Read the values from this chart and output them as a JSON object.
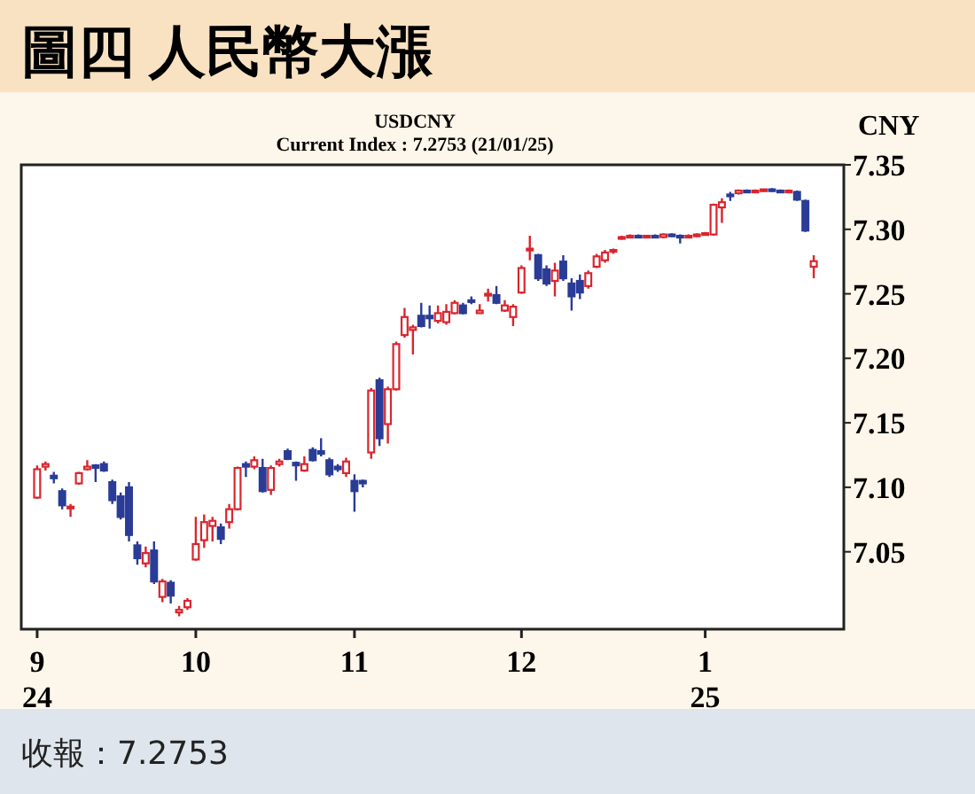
{
  "chart_data": {
    "type": "candlestick",
    "title": "圖四 人民幣大漲",
    "subtitle": "USDCNY",
    "ylabel": "CNY",
    "annotations": [
      "Current Index : 7.2753 (21/01/25)",
      "收報：7.2753"
    ],
    "colors": [
      "#d9262e",
      "#d9262e",
      "#2a3c96",
      "#2a3c96",
      "#d9262e",
      "#d9262e",
      "#d9262e",
      "#2a3c96",
      "#2a3c96",
      "#2a3c96",
      "#2a3c96",
      "#2a3c96",
      "#2a3c96",
      "#d9262e",
      "#2a3c96",
      "#d9262e",
      "#2a3c96",
      "#d9262e",
      "#d9262e",
      "#d9262e",
      "#d9262e",
      "#d9262e",
      "#2a3c96",
      "#d9262e",
      "#d9262e",
      "#2a3c96",
      "#d9262e",
      "#2a3c96",
      "#d9262e",
      "#d9262e",
      "#2a3c96",
      "#2a3c96",
      "#d9262e",
      "#2a3c96",
      "#2a3c96",
      "#2a3c96",
      "#2a3c96",
      "#d9262e",
      "#2a3c96",
      "#2a3c96",
      "#d9262e",
      "#2a3c96",
      "#d9262e",
      "#d9262e",
      "#d9262e",
      "#d9262e",
      "#2a3c96",
      "#2a3c96",
      "#d9262e",
      "#d9262e",
      "#d9262e",
      "#2a3c96",
      "#2a3c96",
      "#d9262e",
      "#d9262e",
      "#2a3c96",
      "#d9262e",
      "#d9262e",
      "#d9262e",
      "#d9262e",
      "#2a3c96",
      "#2a3c96",
      "#d9262e",
      "#2a3c96",
      "#2a3c96",
      "#2a3c96",
      "#d9262e",
      "#d9262e",
      "#d9262e",
      "#d9262e",
      "#d9262e",
      "#d9262e",
      "#2a3c96",
      "#d9262e",
      "#2a3c96",
      "#d9262e",
      "#2a3c96",
      "#2a3c96",
      "#d9262e",
      "#d9262e",
      "#d9262e",
      "#d9262e",
      "#d9262e",
      "#2a3c96",
      "#d9262e",
      "#2a3c96",
      "#d9262e",
      "#d9262e",
      "#2a3c96",
      "#2a3c96",
      "#d9262e",
      "#2a3c96",
      "#2a3c96",
      "#d9262e"
    ],
    "categories": [
      "9 24",
      null,
      null,
      null,
      null,
      null,
      null,
      null,
      null,
      null,
      null,
      null,
      null,
      null,
      null,
      null,
      null,
      null,
      null,
      "10",
      null,
      null,
      null,
      null,
      null,
      null,
      null,
      null,
      null,
      null,
      null,
      null,
      null,
      null,
      null,
      null,
      null,
      null,
      "11",
      null,
      null,
      null,
      null,
      null,
      null,
      null,
      null,
      null,
      null,
      null,
      null,
      null,
      null,
      null,
      null,
      null,
      null,
      null,
      "12",
      null,
      null,
      null,
      null,
      null,
      null,
      null,
      null,
      null,
      null,
      null,
      null,
      null,
      null,
      null,
      null,
      null,
      null,
      null,
      null,
      null,
      "1 25",
      null,
      null,
      null,
      null,
      null,
      null,
      null,
      null,
      null,
      null,
      null,
      null,
      null
    ],
    "ylim": [
      6.99,
      7.35
    ],
    "yticks": [
      {
        "value": 7.05,
        "label": "7.05"
      },
      {
        "value": 7.1,
        "label": "7.10"
      },
      {
        "value": 7.15,
        "label": "7.15"
      },
      {
        "value": 7.2,
        "label": "7.20"
      },
      {
        "value": 7.25,
        "label": "7.25"
      },
      {
        "value": 7.3,
        "label": "7.30"
      },
      {
        "value": 7.35,
        "label": "7.35"
      }
    ],
    "ohlc": [
      [
        7.092,
        7.117,
        7.091,
        7.114
      ],
      [
        7.116,
        7.12,
        7.113,
        7.118
      ],
      [
        7.109,
        7.112,
        7.103,
        7.107
      ],
      [
        7.097,
        7.099,
        7.083,
        7.086
      ],
      [
        7.084,
        7.087,
        7.077,
        7.085
      ],
      [
        7.103,
        7.112,
        7.102,
        7.111
      ],
      [
        7.114,
        7.121,
        7.113,
        7.116
      ],
      [
        7.117,
        7.118,
        7.104,
        7.115
      ],
      [
        7.118,
        7.12,
        7.112,
        7.113
      ],
      [
        7.104,
        7.106,
        7.087,
        7.09
      ],
      [
        7.093,
        7.096,
        7.075,
        7.077
      ],
      [
        7.1,
        7.104,
        7.058,
        7.063
      ],
      [
        7.055,
        7.058,
        7.04,
        7.045
      ],
      [
        7.041,
        7.054,
        7.038,
        7.049
      ],
      [
        7.051,
        7.058,
        7.025,
        7.027
      ],
      [
        7.015,
        7.029,
        7.011,
        7.027
      ],
      [
        7.026,
        7.028,
        7.01,
        7.016
      ],
      [
        7.003,
        7.008,
        7.0,
        7.005
      ],
      [
        7.007,
        7.014,
        7.005,
        7.012
      ],
      [
        7.044,
        7.077,
        7.043,
        7.056
      ],
      [
        7.059,
        7.079,
        7.053,
        7.073
      ],
      [
        7.07,
        7.077,
        7.058,
        7.074
      ],
      [
        7.069,
        7.072,
        7.056,
        7.06
      ],
      [
        7.073,
        7.087,
        7.068,
        7.083
      ],
      [
        7.083,
        7.116,
        7.082,
        7.115
      ],
      [
        7.118,
        7.12,
        7.108,
        7.116
      ],
      [
        7.116,
        7.124,
        7.114,
        7.121
      ],
      [
        7.115,
        7.122,
        7.096,
        7.097
      ],
      [
        7.098,
        7.117,
        7.094,
        7.115
      ],
      [
        7.118,
        7.122,
        7.116,
        7.12
      ],
      [
        7.128,
        7.13,
        7.121,
        7.122
      ],
      [
        7.119,
        7.12,
        7.105,
        7.117
      ],
      [
        7.113,
        7.124,
        7.112,
        7.118
      ],
      [
        7.129,
        7.131,
        7.12,
        7.121
      ],
      [
        7.128,
        7.138,
        7.124,
        7.126
      ],
      [
        7.121,
        7.123,
        7.108,
        7.11
      ],
      [
        7.116,
        7.118,
        7.112,
        7.114
      ],
      [
        7.111,
        7.123,
        7.108,
        7.12
      ],
      [
        7.105,
        7.11,
        7.081,
        7.097
      ],
      [
        7.105,
        7.106,
        7.1,
        7.103
      ],
      [
        7.127,
        7.177,
        7.122,
        7.175
      ],
      [
        7.183,
        7.185,
        7.132,
        7.138
      ],
      [
        7.149,
        7.178,
        7.134,
        7.176
      ],
      [
        7.176,
        7.213,
        7.175,
        7.211
      ],
      [
        7.218,
        7.239,
        7.216,
        7.232
      ],
      [
        7.222,
        7.226,
        7.203,
        7.224
      ],
      [
        7.233,
        7.243,
        7.224,
        7.225
      ],
      [
        7.233,
        7.241,
        7.223,
        7.231
      ],
      [
        7.229,
        7.241,
        7.227,
        7.235
      ],
      [
        7.228,
        7.242,
        7.226,
        7.236
      ],
      [
        7.235,
        7.245,
        7.234,
        7.243
      ],
      [
        7.241,
        7.243,
        7.234,
        7.235
      ],
      [
        7.245,
        7.248,
        7.242,
        7.244
      ],
      [
        7.235,
        7.242,
        7.235,
        7.237
      ],
      [
        7.249,
        7.254,
        7.244,
        7.25
      ],
      [
        7.249,
        7.256,
        7.242,
        7.243
      ],
      [
        7.237,
        7.245,
        7.236,
        7.241
      ],
      [
        7.232,
        7.242,
        7.225,
        7.24
      ],
      [
        7.251,
        7.272,
        7.25,
        7.27
      ],
      [
        7.284,
        7.295,
        7.276,
        7.285
      ],
      [
        7.28,
        7.281,
        7.26,
        7.262
      ],
      [
        7.269,
        7.272,
        7.256,
        7.258
      ],
      [
        7.26,
        7.274,
        7.248,
        7.268
      ],
      [
        7.275,
        7.28,
        7.26,
        7.262
      ],
      [
        7.258,
        7.262,
        7.237,
        7.248
      ],
      [
        7.26,
        7.265,
        7.246,
        7.251
      ],
      [
        7.256,
        7.268,
        7.254,
        7.266
      ],
      [
        7.271,
        7.281,
        7.27,
        7.279
      ],
      [
        7.276,
        7.284,
        7.274,
        7.282
      ],
      [
        7.283,
        7.285,
        7.281,
        7.284
      ],
      [
        7.293,
        7.295,
        7.292,
        7.294
      ],
      [
        7.294,
        7.296,
        7.293,
        7.295
      ],
      [
        7.295,
        7.296,
        7.293,
        7.294
      ],
      [
        7.294,
        7.295,
        7.293,
        7.295
      ],
      [
        7.295,
        7.296,
        7.293,
        7.294
      ],
      [
        7.294,
        7.297,
        7.293,
        7.296
      ],
      [
        7.296,
        7.297,
        7.294,
        7.295
      ],
      [
        7.295,
        7.296,
        7.289,
        7.294
      ],
      [
        7.294,
        7.296,
        7.293,
        7.295
      ],
      [
        7.295,
        7.297,
        7.294,
        7.296
      ],
      [
        7.296,
        7.298,
        7.295,
        7.297
      ],
      [
        7.296,
        7.32,
        7.295,
        7.319
      ],
      [
        7.317,
        7.324,
        7.305,
        7.321
      ],
      [
        7.327,
        7.329,
        7.322,
        7.326
      ],
      [
        7.328,
        7.331,
        7.327,
        7.33
      ],
      [
        7.33,
        7.331,
        7.328,
        7.329
      ],
      [
        7.329,
        7.331,
        7.328,
        7.33
      ],
      [
        7.33,
        7.331,
        7.329,
        7.331
      ],
      [
        7.331,
        7.332,
        7.329,
        7.33
      ],
      [
        7.33,
        7.331,
        7.328,
        7.329
      ],
      [
        7.329,
        7.331,
        7.328,
        7.33
      ],
      [
        7.329,
        7.33,
        7.322,
        7.323
      ],
      [
        7.322,
        7.323,
        7.298,
        7.299
      ],
      [
        7.271,
        7.28,
        7.262,
        7.2753
      ]
    ]
  }
}
